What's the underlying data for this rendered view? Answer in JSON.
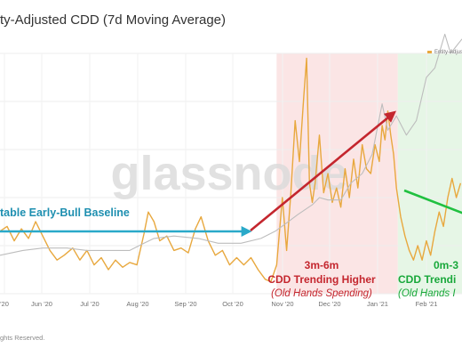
{
  "title": "ty-Adjusted CDD (7d Moving Average)",
  "copyright": "ghts Reserved.",
  "watermark": "glassnode",
  "chart_data": {
    "type": "line",
    "x_ticks": [
      "'20",
      "Jun '20",
      "Jul '20",
      "Aug '20",
      "Sep '20",
      "Oct '20",
      "Nov '20",
      "Dec '20",
      "Jan '21",
      "Feb '21"
    ],
    "x_range": [
      "2020-04-15",
      "2021-03-05"
    ],
    "grid": true,
    "legend_position": "top-right",
    "legend_label": "Entity-Adjuste",
    "colors": {
      "cdd": "#E8A83E",
      "price": "#BDBDBD",
      "red_zone": "#FBE5E5",
      "green_zone": "#E6F6E6",
      "blue_arrow": "#2AA9C9",
      "red_arrow": "#C4262E",
      "green_arrow": "#20C040",
      "blue_text": "#1E8FB0",
      "red_text": "#C4262E",
      "green_text": "#18A83A"
    },
    "series": [
      {
        "key": "cdd",
        "values": [
          [
            "2020-04-15",
            0.26
          ],
          [
            "2020-04-20",
            0.28
          ],
          [
            "2020-04-25",
            0.22
          ],
          [
            "2020-04-30",
            0.27
          ],
          [
            "2020-05-05",
            0.23
          ],
          [
            "2020-05-10",
            0.3
          ],
          [
            "2020-05-15",
            0.24
          ],
          [
            "2020-05-20",
            0.18
          ],
          [
            "2020-05-25",
            0.14
          ],
          [
            "2020-05-30",
            0.16
          ],
          [
            "2020-06-05",
            0.19
          ],
          [
            "2020-06-10",
            0.14
          ],
          [
            "2020-06-15",
            0.18
          ],
          [
            "2020-06-20",
            0.12
          ],
          [
            "2020-06-25",
            0.15
          ],
          [
            "2020-06-30",
            0.1
          ],
          [
            "2020-07-05",
            0.14
          ],
          [
            "2020-07-10",
            0.11
          ],
          [
            "2020-07-15",
            0.13
          ],
          [
            "2020-07-20",
            0.12
          ],
          [
            "2020-07-25",
            0.25
          ],
          [
            "2020-07-28",
            0.34
          ],
          [
            "2020-08-01",
            0.3
          ],
          [
            "2020-08-05",
            0.22
          ],
          [
            "2020-08-10",
            0.24
          ],
          [
            "2020-08-15",
            0.18
          ],
          [
            "2020-08-20",
            0.19
          ],
          [
            "2020-08-25",
            0.17
          ],
          [
            "2020-08-30",
            0.27
          ],
          [
            "2020-09-03",
            0.32
          ],
          [
            "2020-09-08",
            0.22
          ],
          [
            "2020-09-13",
            0.16
          ],
          [
            "2020-09-18",
            0.18
          ],
          [
            "2020-09-23",
            0.12
          ],
          [
            "2020-09-28",
            0.15
          ],
          [
            "2020-10-03",
            0.12
          ],
          [
            "2020-10-08",
            0.15
          ],
          [
            "2020-10-13",
            0.1
          ],
          [
            "2020-10-18",
            0.06
          ],
          [
            "2020-10-22",
            0.05
          ],
          [
            "2020-10-26",
            0.12
          ],
          [
            "2020-10-30",
            0.4
          ],
          [
            "2020-11-02",
            0.18
          ],
          [
            "2020-11-05",
            0.42
          ],
          [
            "2020-11-08",
            0.72
          ],
          [
            "2020-11-11",
            0.55
          ],
          [
            "2020-11-14",
            0.82
          ],
          [
            "2020-11-16",
            0.98
          ],
          [
            "2020-11-18",
            0.46
          ],
          [
            "2020-11-20",
            0.38
          ],
          [
            "2020-11-22",
            0.46
          ],
          [
            "2020-11-25",
            0.66
          ],
          [
            "2020-11-28",
            0.42
          ],
          [
            "2020-12-01",
            0.5
          ],
          [
            "2020-12-04",
            0.38
          ],
          [
            "2020-12-07",
            0.44
          ],
          [
            "2020-12-10",
            0.36
          ],
          [
            "2020-12-13",
            0.52
          ],
          [
            "2020-12-16",
            0.4
          ],
          [
            "2020-12-19",
            0.56
          ],
          [
            "2020-12-22",
            0.44
          ],
          [
            "2020-12-25",
            0.62
          ],
          [
            "2020-12-28",
            0.52
          ],
          [
            "2020-12-31",
            0.5
          ],
          [
            "2021-01-03",
            0.62
          ],
          [
            "2021-01-06",
            0.55
          ],
          [
            "2021-01-08",
            0.7
          ],
          [
            "2021-01-10",
            0.64
          ],
          [
            "2021-01-12",
            0.76
          ],
          [
            "2021-01-14",
            0.66
          ],
          [
            "2021-01-16",
            0.58
          ],
          [
            "2021-01-18",
            0.44
          ],
          [
            "2021-01-21",
            0.32
          ],
          [
            "2021-01-24",
            0.24
          ],
          [
            "2021-01-27",
            0.18
          ],
          [
            "2021-01-30",
            0.14
          ],
          [
            "2021-02-02",
            0.2
          ],
          [
            "2021-02-05",
            0.14
          ],
          [
            "2021-02-08",
            0.22
          ],
          [
            "2021-02-11",
            0.16
          ],
          [
            "2021-02-14",
            0.26
          ],
          [
            "2021-02-17",
            0.34
          ],
          [
            "2021-02-20",
            0.28
          ],
          [
            "2021-02-23",
            0.4
          ],
          [
            "2021-02-26",
            0.48
          ],
          [
            "2021-03-01",
            0.4
          ],
          [
            "2021-03-04",
            0.46
          ]
        ]
      },
      {
        "key": "price",
        "values": [
          [
            "2020-04-15",
            0.16
          ],
          [
            "2020-05-01",
            0.18
          ],
          [
            "2020-05-15",
            0.19
          ],
          [
            "2020-06-01",
            0.19
          ],
          [
            "2020-06-15",
            0.18
          ],
          [
            "2020-07-01",
            0.18
          ],
          [
            "2020-07-15",
            0.18
          ],
          [
            "2020-07-25",
            0.21
          ],
          [
            "2020-08-01",
            0.23
          ],
          [
            "2020-08-15",
            0.24
          ],
          [
            "2020-09-01",
            0.23
          ],
          [
            "2020-09-15",
            0.21
          ],
          [
            "2020-10-01",
            0.21
          ],
          [
            "2020-10-15",
            0.23
          ],
          [
            "2020-10-25",
            0.26
          ],
          [
            "2020-11-01",
            0.29
          ],
          [
            "2020-11-10",
            0.33
          ],
          [
            "2020-11-20",
            0.37
          ],
          [
            "2020-11-25",
            0.4
          ],
          [
            "2020-12-01",
            0.39
          ],
          [
            "2020-12-10",
            0.39
          ],
          [
            "2020-12-17",
            0.46
          ],
          [
            "2020-12-25",
            0.5
          ],
          [
            "2021-01-01",
            0.58
          ],
          [
            "2021-01-08",
            0.79
          ],
          [
            "2021-01-12",
            0.68
          ],
          [
            "2021-01-18",
            0.74
          ],
          [
            "2021-01-25",
            0.66
          ],
          [
            "2021-02-01",
            0.72
          ],
          [
            "2021-02-08",
            0.9
          ],
          [
            "2021-02-14",
            0.94
          ],
          [
            "2021-02-21",
            1.08
          ],
          [
            "2021-02-25",
            1.0
          ],
          [
            "2021-03-01",
            1.03
          ],
          [
            "2021-03-05",
            1.06
          ]
        ]
      }
    ],
    "shaded_regions": [
      {
        "key": "red_zone",
        "from": "2020-10-26",
        "to": "2021-01-19"
      },
      {
        "key": "green_zone",
        "from": "2021-01-19",
        "to": "2021-03-05"
      }
    ],
    "annotations": [
      {
        "key": "baseline",
        "text": "table Early-Bull Baseline",
        "color_key": "blue_text"
      },
      {
        "key": "red_head",
        "text": "3m-6m",
        "color_key": "red_text"
      },
      {
        "key": "red_main",
        "text": "CDD Trending Higher",
        "color_key": "red_text"
      },
      {
        "key": "red_sub",
        "text": "(Old Hands Spending)",
        "color_key": "red_text"
      },
      {
        "key": "green_head",
        "text": "0m-3",
        "color_key": "green_text"
      },
      {
        "key": "green_main",
        "text": "CDD Trendi",
        "color_key": "green_text"
      },
      {
        "key": "green_sub",
        "text": "(Old Hands I",
        "color_key": "green_text"
      }
    ]
  }
}
